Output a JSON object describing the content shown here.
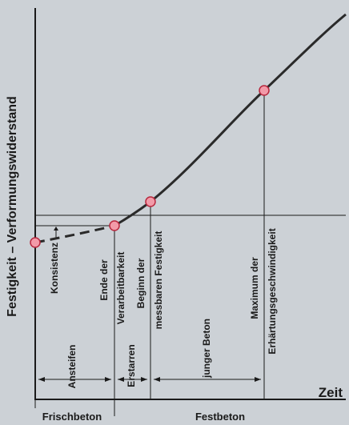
{
  "colors": {
    "background": "#ccd1d6",
    "curve": "#2a2a2a",
    "axis": "#1a1a1a",
    "marker_fill": "#f29aa8",
    "marker_stroke": "#b8283e"
  },
  "chart_data": {
    "type": "line",
    "ylabel": "Festigkeit – Verformungswiderstand",
    "xlabel": "Zeit",
    "grid": false,
    "legend": "none",
    "curve": {
      "dashed_segment": "Frischbeton bis Ende der Verarbeitbarkeit",
      "solid_segment": "Erstarren und Festbeton"
    },
    "points": [
      {
        "label": "Konsistenz",
        "marker": true
      },
      {
        "label": "Ende der Verarbeitbarkeit",
        "marker": true
      },
      {
        "label": "Beginn der messbaren Festigkeit",
        "marker": true
      },
      {
        "label": "Maximum der Erhärtungsgeschwindigkeit",
        "marker": true
      }
    ],
    "phases": [
      "Ansteifen",
      "Erstarren",
      "junger Beton"
    ],
    "states": [
      "Frischbeton",
      "Festbeton"
    ]
  }
}
